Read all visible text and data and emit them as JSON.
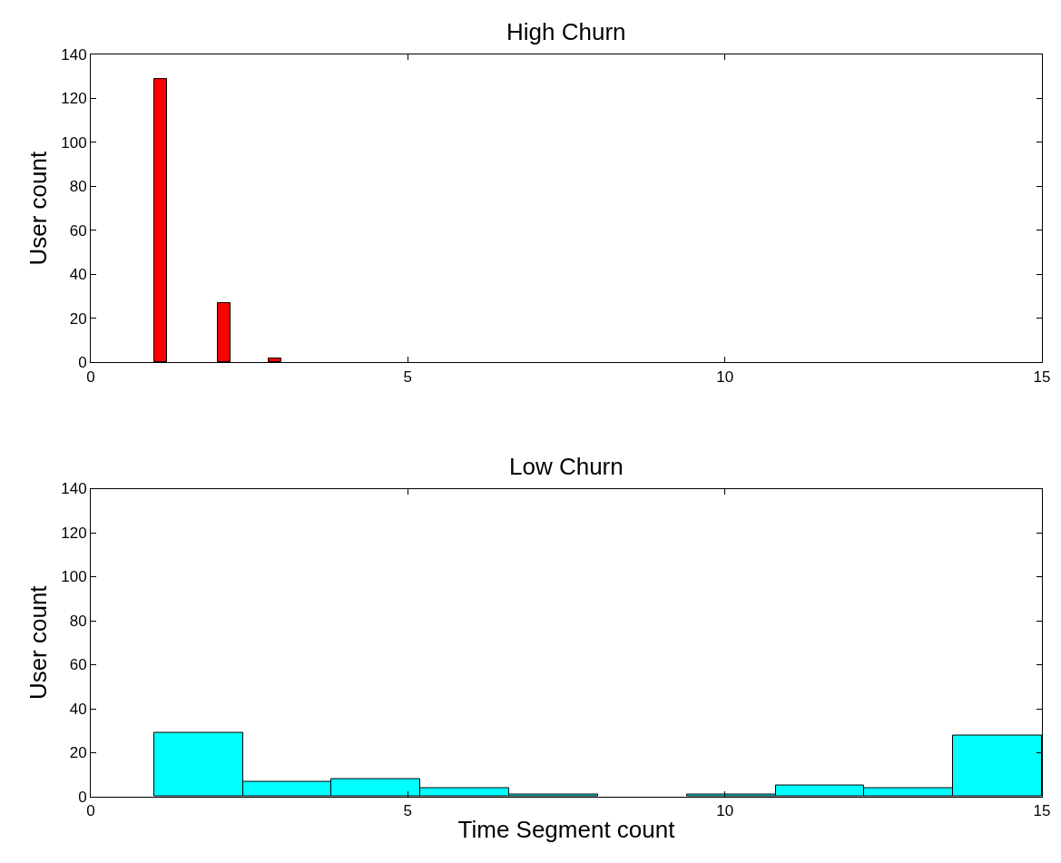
{
  "chart_data": [
    {
      "type": "histogram",
      "title": "High Churn",
      "ylabel": "User count",
      "color": "#ff0000",
      "bins": [
        1.0,
        1.2,
        1.4,
        1.6,
        1.8,
        2.0,
        2.2,
        2.4,
        2.6,
        2.8,
        3.0
      ],
      "values": [
        129,
        0,
        0,
        0,
        0,
        27,
        0,
        0,
        0,
        2
      ],
      "xlim": [
        0,
        15
      ],
      "xticks": [
        0,
        5,
        10,
        15
      ],
      "ylim": [
        0,
        140
      ],
      "yticks": [
        0,
        20,
        40,
        60,
        80,
        100,
        120,
        140
      ]
    },
    {
      "type": "histogram",
      "title": "Low Churn",
      "xlabel": "Time Segment count",
      "ylabel": "User count",
      "color": "#00ffff",
      "bins": [
        1.0,
        2.4,
        3.8,
        5.2,
        6.6,
        8.0,
        9.4,
        10.8,
        12.2,
        13.6,
        15.0
      ],
      "values": [
        29,
        7,
        8,
        4,
        1,
        0,
        1,
        5,
        4,
        28
      ],
      "xlim": [
        0,
        15
      ],
      "xticks": [
        0,
        5,
        10,
        15
      ],
      "ylim": [
        0,
        140
      ],
      "yticks": [
        0,
        20,
        40,
        60,
        80,
        100,
        120,
        140
      ]
    }
  ]
}
